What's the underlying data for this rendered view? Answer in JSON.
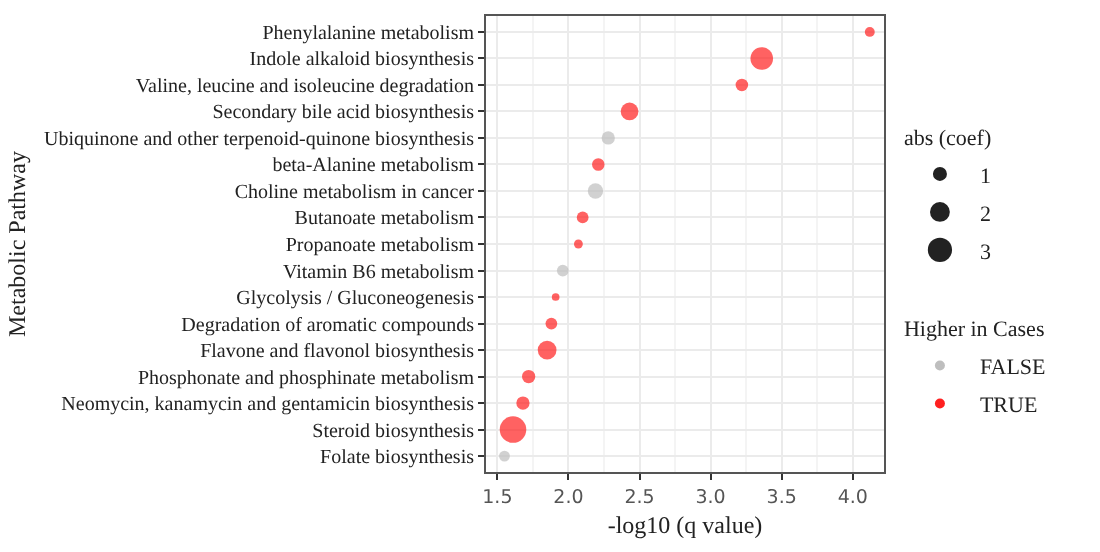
{
  "chart_data": {
    "type": "bubble",
    "orientation": "horizontal",
    "xlabel": "-log10 (q value)",
    "ylabel": "Metabolic Pathway",
    "legend_title": "Higher in Cases",
    "annotations": [
      "abs (coef)"
    ],
    "categories": [
      "Phenylalanine metabolism",
      "Indole alkaloid biosynthesis",
      "Valine, leucine and isoleucine degradation",
      "Secondary bile acid biosynthesis",
      "Ubiquinone and other terpenoid-quinone biosynthesis",
      "beta-Alanine metabolism",
      "Choline metabolism in cancer",
      "Butanoate metabolism",
      "Propanoate metabolism",
      "Vitamin B6 metabolism",
      "Glycolysis / Gluconeogenesis",
      "Degradation of aromatic compounds",
      "Flavone and flavonol biosynthesis",
      "Phosphonate and phosphinate metabolism",
      "Neomycin, kanamycin and gentamicin biosynthesis",
      "Steroid biosynthesis",
      "Folate biosynthesis"
    ],
    "series": [
      {
        "name": "FALSE",
        "color": "#bebebe",
        "values": [
          null,
          null,
          null,
          null,
          2.28,
          null,
          2.19,
          null,
          null,
          1.96,
          null,
          null,
          null,
          null,
          null,
          null,
          1.55
        ],
        "sizes": [
          null,
          null,
          null,
          null,
          0.9,
          null,
          1.2,
          null,
          null,
          0.7,
          null,
          null,
          null,
          null,
          null,
          null,
          0.6
        ]
      },
      {
        "name": "TRUE",
        "color": "#ff2020",
        "values": [
          4.12,
          3.36,
          3.22,
          2.43,
          null,
          2.21,
          null,
          2.1,
          2.07,
          null,
          1.91,
          1.88,
          1.85,
          1.72,
          1.68,
          1.61,
          null
        ],
        "sizes": [
          0.5,
          2.6,
          0.8,
          1.6,
          null,
          0.8,
          null,
          0.7,
          0.4,
          null,
          0.3,
          0.7,
          1.8,
          0.9,
          0.9,
          3.6,
          null
        ]
      }
    ],
    "size_legend": [
      1,
      2,
      3
    ],
    "xlim": [
      1.42,
      4.22
    ],
    "xticks": [
      1.5,
      {
        "value": 2,
        "label": "2.0"
      },
      2.5,
      {
        "value": 3,
        "label": "3.0"
      },
      3.5,
      {
        "value": 4,
        "label": "4.0"
      }
    ],
    "grid": true,
    "legend": "right",
    "marker": "circle"
  }
}
